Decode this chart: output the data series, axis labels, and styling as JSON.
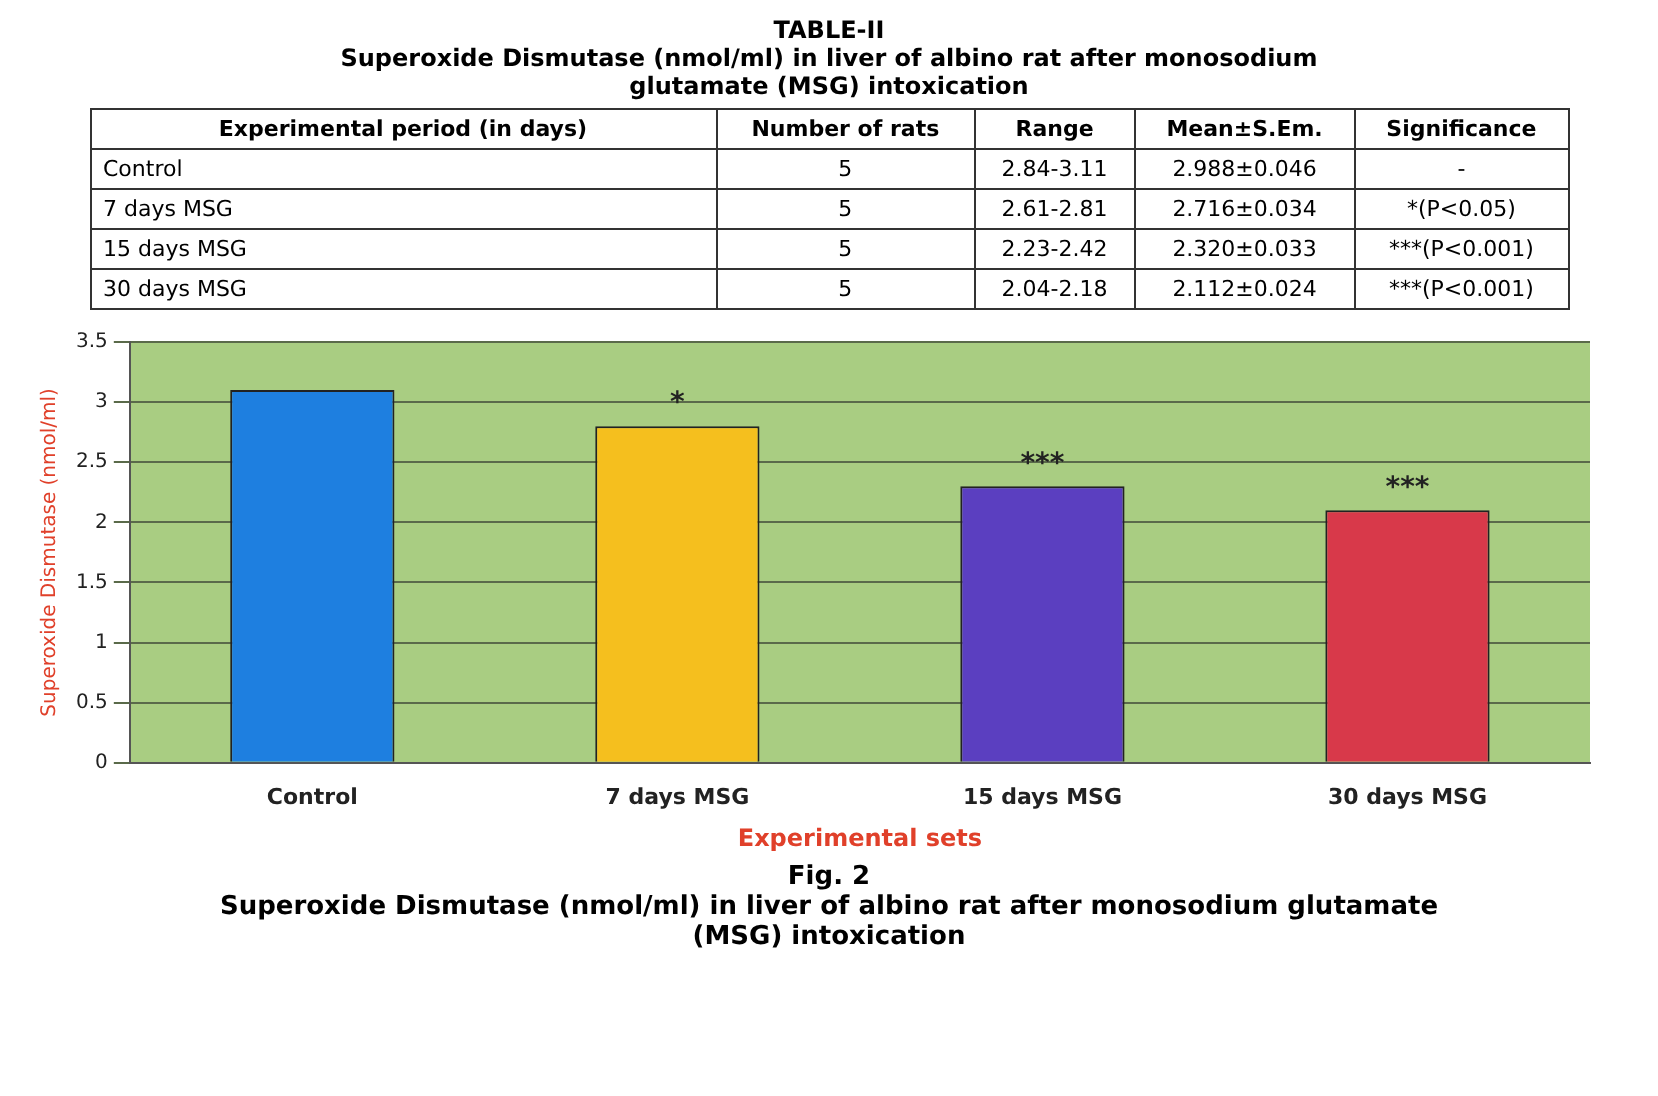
{
  "chart_data": [
    {
      "type": "other",
      "title": "TABLE-II",
      "subtitle": "Superoxide Dismutase (nmol/ml) in liver of albino rat after monosodium glutamate (MSG) intoxication",
      "annotations": [
        "Experimental period (in days)",
        "Number of rats",
        "Range",
        "Mean±S.Em.",
        "Significance",
        "Control",
        "5",
        "2.84-3.11",
        "2.988±0.046",
        "-",
        "7 days MSG",
        "5",
        "2.61-2.81",
        "2.716±0.034",
        "*(P<0.05)",
        "15 days MSG",
        "5",
        "2.23-2.42",
        "2.320±0.033",
        "***(P<0.001)",
        "30 days MSG",
        "5",
        "2.04-2.18",
        "2.112±0.024",
        "***(P<0.001)"
      ]
    },
    {
      "type": "bar",
      "title": "Fig. 2",
      "subtitle": "Superoxide Dismutase (nmol/ml) in liver of albino rat after monosodium glutamate (MSG) intoxication",
      "xlabel": "Experimental sets",
      "ylabel": "Superoxide Dismutase (nmol/ml)",
      "categories": [
        "Control",
        "7 days MSG",
        "15 days MSG",
        "30 days MSG"
      ],
      "values": [
        3.1,
        2.8,
        2.3,
        2.1
      ],
      "colors": [
        "#1e7fe0",
        "#f5bf1e",
        "#5b3fc0",
        "#d8394a"
      ],
      "ylim": [
        0,
        3.5
      ],
      "yticks": [
        0,
        0.5,
        1,
        1.5,
        2,
        2.5,
        3,
        3.5
      ],
      "grid": "y",
      "legend": false,
      "annotations": [
        {
          "text": "*",
          "x": "7 days MSG",
          "y": 2.8
        },
        {
          "text": "***",
          "x": "15 days MSG",
          "y": 2.3
        },
        {
          "text": "***",
          "x": "30 days MSG",
          "y": 2.1
        }
      ]
    }
  ]
}
